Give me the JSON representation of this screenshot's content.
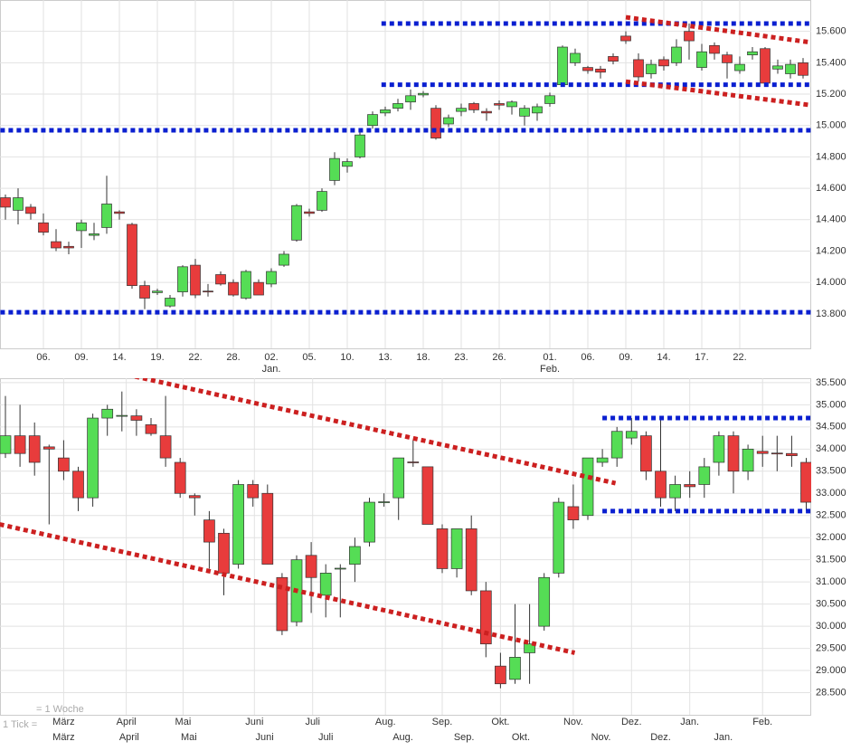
{
  "chart_data": [
    {
      "type": "candlestick",
      "up_color": "#55dd55",
      "down_color": "#e83c3c",
      "grid": true,
      "ylim": [
        13580,
        15800
      ],
      "yticks": [
        {
          "value": 13800,
          "label": "13.800"
        },
        {
          "value": 14000,
          "label": "14.000"
        },
        {
          "value": 14200,
          "label": "14.200"
        },
        {
          "value": 14400,
          "label": "14.400"
        },
        {
          "value": 14600,
          "label": "14.600"
        },
        {
          "value": 14800,
          "label": "14.800"
        },
        {
          "value": 15000,
          "label": "15.000"
        },
        {
          "value": 15200,
          "label": "15.200"
        },
        {
          "value": 15400,
          "label": "15.400"
        },
        {
          "value": 15600,
          "label": "15.600"
        }
      ],
      "xticks": [
        {
          "value": 3,
          "label": "06."
        },
        {
          "value": 6,
          "label": "09."
        },
        {
          "value": 9,
          "label": "14."
        },
        {
          "value": 12,
          "label": "19."
        },
        {
          "value": 15,
          "label": "22."
        },
        {
          "value": 18,
          "label": "28."
        },
        {
          "value": 21,
          "label": "02."
        },
        {
          "value": 24,
          "label": "05."
        },
        {
          "value": 27,
          "label": "10."
        },
        {
          "value": 30,
          "label": "13."
        },
        {
          "value": 33,
          "label": "18."
        },
        {
          "value": 36,
          "label": "23."
        },
        {
          "value": 39,
          "label": "26."
        },
        {
          "value": 43,
          "label": "01."
        },
        {
          "value": 46,
          "label": "06."
        },
        {
          "value": 49,
          "label": "09."
        },
        {
          "value": 52,
          "label": "14."
        },
        {
          "value": 55,
          "label": "17."
        },
        {
          "value": 58,
          "label": "22."
        }
      ],
      "xticks2": [
        {
          "value": 21,
          "label": "Jan."
        },
        {
          "value": 43,
          "label": "Feb."
        }
      ],
      "open": [
        14540,
        14460,
        14480,
        14380,
        14260,
        14230,
        14330,
        14300,
        14350,
        14450,
        14370,
        13980,
        13935,
        13850,
        13940,
        14110,
        13945,
        14050,
        14000,
        13900,
        14000,
        13990,
        14110,
        14270,
        14450,
        14460,
        14650,
        14740,
        14800,
        15000,
        15080,
        15110,
        15150,
        15195,
        15110,
        15010,
        15090,
        15140,
        15090,
        15140,
        15120,
        15060,
        15080,
        15140,
        15260,
        15400,
        15370,
        15360,
        15440,
        15570,
        15420,
        15330,
        15420,
        15400,
        15600,
        15370,
        15510,
        15450,
        15350,
        15450,
        15490,
        15360,
        15330,
        15400
      ],
      "high": [
        14560,
        14600,
        14500,
        14440,
        14340,
        14260,
        14400,
        14380,
        14680,
        14460,
        14380,
        14010,
        13960,
        13920,
        14110,
        14150,
        13990,
        14070,
        14020,
        14080,
        14020,
        14090,
        14200,
        14500,
        14470,
        14600,
        14830,
        14790,
        14980,
        15090,
        15120,
        15170,
        15230,
        15220,
        15130,
        15070,
        15140,
        15150,
        15110,
        15160,
        15160,
        15130,
        15140,
        15210,
        15510,
        15490,
        15380,
        15380,
        15460,
        15600,
        15460,
        15420,
        15440,
        15550,
        15650,
        15520,
        15530,
        15470,
        15440,
        15500,
        15500,
        15420,
        15420,
        15430
      ],
      "low": [
        14400,
        14370,
        14400,
        14300,
        14200,
        14180,
        14220,
        14270,
        14310,
        14400,
        13960,
        13830,
        13920,
        13840,
        13910,
        13900,
        13910,
        13980,
        13910,
        13890,
        13920,
        13970,
        14100,
        14260,
        14420,
        14450,
        14620,
        14700,
        14790,
        14980,
        15060,
        15090,
        15100,
        15180,
        14910,
        14990,
        15060,
        15080,
        15030,
        15100,
        15070,
        15000,
        15030,
        15120,
        15250,
        15380,
        15330,
        15300,
        15390,
        15520,
        15280,
        15300,
        15350,
        15380,
        15420,
        15350,
        15420,
        15300,
        15330,
        15420,
        15250,
        15330,
        15300,
        15300
      ],
      "close": [
        14480,
        14540,
        14440,
        14320,
        14220,
        14220,
        14380,
        14310,
        14500,
        14440,
        13980,
        13900,
        13945,
        13900,
        14100,
        13920,
        13940,
        13990,
        13920,
        14070,
        13920,
        14070,
        14180,
        14490,
        14440,
        14580,
        14790,
        14770,
        14940,
        15070,
        15100,
        15140,
        15190,
        15205,
        14920,
        15050,
        15110,
        15100,
        15080,
        15130,
        15150,
        15110,
        15120,
        15190,
        15500,
        15460,
        15350,
        15340,
        15410,
        15540,
        15310,
        15390,
        15380,
        15500,
        15540,
        15470,
        15460,
        15400,
        15390,
        15470,
        15270,
        15380,
        15390,
        15320
      ],
      "trendlines": [
        {
          "color": "#0a1fd0",
          "x": [
            29.7,
            63.6
          ],
          "y": [
            15650,
            15650
          ]
        },
        {
          "color": "#0a1fd0",
          "x": [
            29.7,
            63.6
          ],
          "y": [
            15260,
            15260
          ]
        },
        {
          "color": "#0a1fd0",
          "x": [
            -0.4,
            63.6
          ],
          "y": [
            14970,
            14970
          ]
        },
        {
          "color": "#0a1fd0",
          "x": [
            -0.4,
            63.6
          ],
          "y": [
            13810,
            13810
          ]
        },
        {
          "color": "#cc2020",
          "x": [
            49,
            63.6
          ],
          "y": [
            15690,
            15530
          ]
        },
        {
          "color": "#cc2020",
          "x": [
            49,
            63.6
          ],
          "y": [
            15280,
            15130
          ]
        }
      ]
    },
    {
      "type": "candlestick",
      "up_color": "#55dd55",
      "down_color": "#e83c3c",
      "grid": true,
      "ylim": [
        28000,
        35600
      ],
      "yticks": [
        {
          "value": 28500,
          "label": "28.500"
        },
        {
          "value": 29000,
          "label": "29.000"
        },
        {
          "value": 29500,
          "label": "29.500"
        },
        {
          "value": 30000,
          "label": "30.000"
        },
        {
          "value": 30500,
          "label": "30.500"
        },
        {
          "value": 31000,
          "label": "31.000"
        },
        {
          "value": 31500,
          "label": "31.500"
        },
        {
          "value": 32000,
          "label": "32.000"
        },
        {
          "value": 32500,
          "label": "32.500"
        },
        {
          "value": 33000,
          "label": "33.000"
        },
        {
          "value": 33500,
          "label": "33.500"
        },
        {
          "value": 34000,
          "label": "34.000"
        },
        {
          "value": 34500,
          "label": "34.500"
        },
        {
          "value": 35000,
          "label": "35.000"
        },
        {
          "value": 35500,
          "label": "35.500"
        }
      ],
      "xticks": [
        {
          "value": 4,
          "label": "März"
        },
        {
          "value": 8.3,
          "label": "April"
        },
        {
          "value": 12.2,
          "label": "Mai"
        },
        {
          "value": 17.1,
          "label": "Juni"
        },
        {
          "value": 21.1,
          "label": "Juli"
        },
        {
          "value": 26.1,
          "label": "Aug."
        },
        {
          "value": 30,
          "label": "Sep."
        },
        {
          "value": 34,
          "label": "Okt."
        },
        {
          "value": 39,
          "label": "Nov."
        },
        {
          "value": 43,
          "label": "Dez."
        },
        {
          "value": 47,
          "label": "Jan."
        },
        {
          "value": 52,
          "label": "Feb."
        }
      ],
      "xticks2": [
        {
          "value": 4,
          "label": "März"
        },
        {
          "value": 8.5,
          "label": "April"
        },
        {
          "value": 12.6,
          "label": "Mai"
        },
        {
          "value": 17.8,
          "label": "Juni"
        },
        {
          "value": 22,
          "label": "Juli"
        },
        {
          "value": 27.3,
          "label": "Aug."
        },
        {
          "value": 31.5,
          "label": "Sep."
        },
        {
          "value": 35.4,
          "label": "Okt."
        },
        {
          "value": 40.9,
          "label": "Nov."
        },
        {
          "value": 45,
          "label": "Dez."
        },
        {
          "value": 49.3,
          "label": "Jan."
        }
      ],
      "annotations": [
        "= 1 Woche",
        "1 Tick ="
      ],
      "open": [
        33900,
        34300,
        34300,
        34050,
        33800,
        33500,
        32900,
        34700,
        34740,
        34750,
        34550,
        34300,
        33700,
        32950,
        32400,
        32100,
        31400,
        33200,
        33000,
        31100,
        30100,
        31600,
        30700,
        31290,
        31400,
        31900,
        32790,
        32900,
        33710,
        33600,
        32200,
        31300,
        32200,
        30800,
        29100,
        28800,
        29400,
        30000,
        31200,
        32700,
        32500,
        33700,
        33800,
        34250,
        34300,
        33500,
        32900,
        33200,
        33200,
        33700,
        34300,
        33500,
        33950,
        33910,
        33900,
        33700
      ],
      "high": [
        35200,
        35000,
        34600,
        34100,
        34200,
        33600,
        34800,
        35000,
        35300,
        34900,
        34700,
        35200,
        33800,
        33000,
        32600,
        32200,
        33300,
        33300,
        33200,
        31200,
        31600,
        31900,
        31400,
        31400,
        32000,
        32900,
        33000,
        33800,
        34200,
        33600,
        32300,
        32200,
        32500,
        31000,
        29400,
        30500,
        30500,
        31200,
        32900,
        33200,
        33800,
        34000,
        34500,
        34700,
        34400,
        34700,
        33400,
        33500,
        33800,
        34400,
        34400,
        34100,
        34300,
        34300,
        34300,
        33800
      ],
      "low": [
        33800,
        33600,
        33400,
        32300,
        33300,
        32600,
        32700,
        34300,
        34400,
        34300,
        34300,
        33600,
        32900,
        32500,
        31300,
        30700,
        31300,
        32700,
        31400,
        29800,
        30000,
        30300,
        30200,
        30200,
        31000,
        31800,
        32700,
        32400,
        33600,
        32300,
        31200,
        31100,
        30700,
        29300,
        28600,
        28700,
        28700,
        29900,
        31100,
        32200,
        32400,
        33600,
        33600,
        34100,
        33300,
        32700,
        32600,
        32900,
        32900,
        33400,
        33000,
        33300,
        33600,
        33500,
        33600,
        32600
      ],
      "close": [
        34300,
        33900,
        33700,
        34000,
        33500,
        32900,
        34700,
        34900,
        34760,
        34650,
        34350,
        33800,
        33000,
        32900,
        31900,
        31200,
        33200,
        32900,
        31400,
        29900,
        31500,
        31100,
        31200,
        31310,
        31800,
        32800,
        32810,
        33800,
        33690,
        32300,
        31300,
        32200,
        30800,
        29600,
        28700,
        29300,
        29600,
        31100,
        32800,
        32400,
        33800,
        33800,
        34400,
        34400,
        33500,
        32900,
        33200,
        33150,
        33600,
        34300,
        33500,
        34000,
        33900,
        33890,
        33850,
        32800
      ],
      "trendlines": [
        {
          "color": "#cc2020",
          "x": [
            -0.4,
            39.1
          ],
          "y": [
            32300,
            29400
          ]
        },
        {
          "color": "#cc2020",
          "x": [
            8.9,
            41.9
          ],
          "y": [
            35640,
            33230
          ]
        },
        {
          "color": "#0a1fd0",
          "x": [
            41,
            55.3
          ],
          "y": [
            34700,
            34700
          ]
        },
        {
          "color": "#0a1fd0",
          "x": [
            41,
            55.3
          ],
          "y": [
            32600,
            32600
          ]
        }
      ]
    }
  ]
}
